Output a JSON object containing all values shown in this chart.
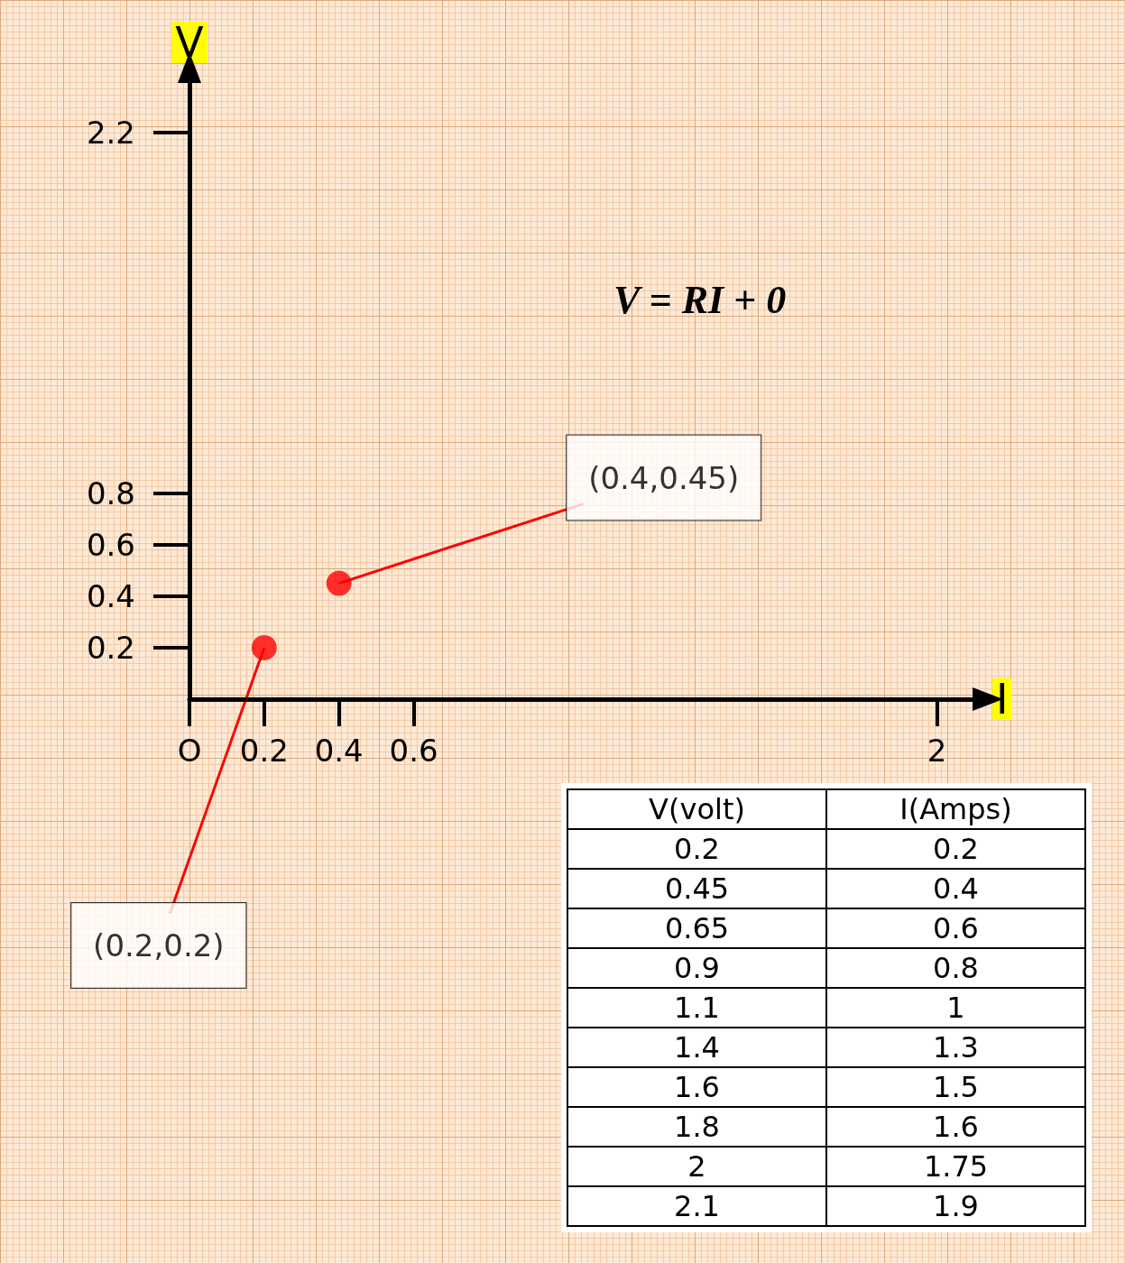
{
  "chart_data": [
    {
      "type": "scatter",
      "xlabel": "I",
      "ylabel": "V",
      "x": [
        0.2,
        0.4
      ],
      "values": [
        0.2,
        0.45
      ],
      "color": "#ff0000",
      "marker": "circle",
      "xlim": [
        0,
        2.1
      ],
      "xticks": [
        {
          "value": 0,
          "label": "O"
        },
        0.2,
        0.4,
        0.6,
        2
      ],
      "ylim": [
        0,
        2.4
      ],
      "yticks": [
        0.2,
        0.4,
        0.6,
        0.8,
        2.2
      ],
      "grid": false,
      "annotations": [
        "V = RI + 0",
        {
          "text": "(0.4,0.45)",
          "x": 0.4,
          "y": 0.45
        },
        {
          "text": "(0.2,0.2)",
          "x": 0.2,
          "y": 0.2
        }
      ]
    },
    {
      "type": "other",
      "annotations": [
        "V(volt)",
        "I(Amps)",
        "0.2",
        "0.2",
        "0.45",
        "0.4",
        "0.65",
        "0.6",
        "0.9",
        "0.8",
        "1.1",
        "1",
        "1.4",
        "1.3",
        "1.6",
        "1.5",
        "1.8",
        "1.6",
        "2",
        "1.75",
        "2.1",
        "1.9"
      ]
    }
  ]
}
